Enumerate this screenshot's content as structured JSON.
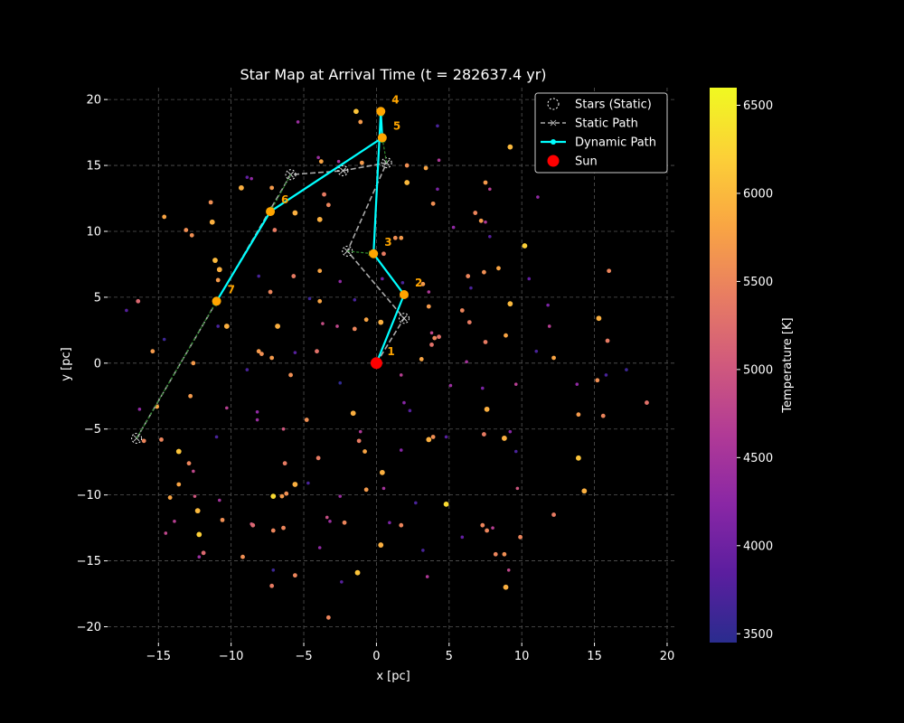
{
  "chart_data": {
    "type": "scatter",
    "title": "Star Map at Arrival Time (t = 282637.4 yr)",
    "xlabel": "x [pc]",
    "ylabel": "y [pc]",
    "xlim": [
      -18.5,
      20.5
    ],
    "ylim": [
      -21.2,
      20.9
    ],
    "xticks": [
      -15,
      -10,
      -5,
      0,
      5,
      10,
      15,
      20
    ],
    "xtick_labels": [
      "−15",
      "−10",
      "−5",
      "0",
      "5",
      "10",
      "15",
      "20"
    ],
    "yticks": [
      -20,
      -15,
      -10,
      -5,
      0,
      5,
      10,
      15,
      20
    ],
    "ytick_labels": [
      "−20",
      "−15",
      "−10",
      "−5",
      "0",
      "5",
      "10",
      "15",
      "20"
    ],
    "grid": true,
    "legend_position": "top-right",
    "legend": [
      {
        "label": "Stars (Static)",
        "kind": "dashed-circle",
        "color": "#ffffff"
      },
      {
        "label": "Static Path",
        "kind": "dashed-line-x",
        "color": "#aaaaaa"
      },
      {
        "label": "Dynamic Path",
        "kind": "solid-line-dot",
        "color": "#00ffff"
      },
      {
        "label": "Sun",
        "kind": "dot",
        "color": "#ff0000"
      }
    ],
    "colorbar": {
      "label": "Temperature [K]",
      "min": 3450,
      "max": 6600,
      "ticks": [
        3500,
        4000,
        4500,
        5000,
        5500,
        6000,
        6500
      ],
      "colors": [
        "#2a2c8e",
        "#5b1e9f",
        "#8a27a5",
        "#b13a96",
        "#d0597d",
        "#e87d62",
        "#f9a543",
        "#fcd037",
        "#f0f921"
      ]
    },
    "sun": {
      "x": 0.0,
      "y": 0.0,
      "color": "#ff0000"
    },
    "static_path": {
      "color": "#aaaaaa",
      "points": [
        {
          "x": 0.0,
          "y": 0.0
        },
        {
          "x": 1.9,
          "y": 3.4
        },
        {
          "x": -2.0,
          "y": 8.5
        },
        {
          "x": 0.7,
          "y": 15.2
        },
        {
          "x": -2.3,
          "y": 14.6
        },
        {
          "x": -5.9,
          "y": 14.3
        },
        {
          "x": -16.5,
          "y": -5.7
        }
      ]
    },
    "dynamic_path": {
      "color": "#00ffff",
      "marker_color": "#ffa500",
      "points": [
        {
          "x": 0.0,
          "y": 0.0,
          "label": "1"
        },
        {
          "x": 1.9,
          "y": 5.2,
          "label": "2"
        },
        {
          "x": -0.2,
          "y": 8.3,
          "label": "3"
        },
        {
          "x": 0.3,
          "y": 19.1,
          "label": "4"
        },
        {
          "x": 0.4,
          "y": 17.1,
          "label": "5"
        },
        {
          "x": -7.3,
          "y": 11.5,
          "label": "6"
        },
        {
          "x": -11.0,
          "y": 4.7,
          "label": "7"
        }
      ]
    },
    "drift_arrows": [
      {
        "x1": -2.0,
        "y1": 8.5,
        "x2": -0.2,
        "y2": 8.3
      },
      {
        "x1": 0.4,
        "y1": 17.1,
        "x2": 0.3,
        "y2": 19.1
      },
      {
        "x1": 0.7,
        "y1": 15.2,
        "x2": 0.4,
        "y2": 17.1
      },
      {
        "x1": -5.9,
        "y1": 14.3,
        "x2": -7.3,
        "y2": 11.5
      },
      {
        "x1": -16.5,
        "y1": -5.7,
        "x2": -11.0,
        "y2": 4.7
      }
    ],
    "stars": [
      {
        "x": -5.4,
        "y": 18.3,
        "t": 4400
      },
      {
        "x": -1.4,
        "y": 19.1,
        "t": 6100
      },
      {
        "x": -1.1,
        "y": 18.3,
        "t": 5700
      },
      {
        "x": 4.2,
        "y": 18.0,
        "t": 3700
      },
      {
        "x": -8.9,
        "y": 14.1,
        "t": 3900
      },
      {
        "x": -8.6,
        "y": 14.0,
        "t": 4300
      },
      {
        "x": -9.3,
        "y": 13.3,
        "t": 5900
      },
      {
        "x": -7.2,
        "y": 13.3,
        "t": 5700
      },
      {
        "x": -3.8,
        "y": 15.3,
        "t": 5800
      },
      {
        "x": -4.0,
        "y": 15.6,
        "t": 4400
      },
      {
        "x": -2.6,
        "y": 15.3,
        "t": 4500
      },
      {
        "x": -1.0,
        "y": 15.2,
        "t": 5700
      },
      {
        "x": 2.1,
        "y": 15.0,
        "t": 5600
      },
      {
        "x": 3.4,
        "y": 14.8,
        "t": 5800
      },
      {
        "x": 4.3,
        "y": 15.4,
        "t": 4600
      },
      {
        "x": 2.1,
        "y": 13.7,
        "t": 6000
      },
      {
        "x": 4.2,
        "y": 13.2,
        "t": 4100
      },
      {
        "x": -3.6,
        "y": 12.8,
        "t": 5400
      },
      {
        "x": -3.3,
        "y": 12.0,
        "t": 5500
      },
      {
        "x": 3.9,
        "y": 12.1,
        "t": 5600
      },
      {
        "x": 7.5,
        "y": 13.7,
        "t": 5700
      },
      {
        "x": 7.8,
        "y": 13.2,
        "t": 4700
      },
      {
        "x": 9.2,
        "y": 16.4,
        "t": 6000
      },
      {
        "x": 11.1,
        "y": 12.6,
        "t": 4300
      },
      {
        "x": -14.6,
        "y": 11.1,
        "t": 5800
      },
      {
        "x": -13.1,
        "y": 10.1,
        "t": 5600
      },
      {
        "x": -12.7,
        "y": 9.7,
        "t": 5600
      },
      {
        "x": -11.4,
        "y": 12.2,
        "t": 5600
      },
      {
        "x": -11.3,
        "y": 10.7,
        "t": 5900
      },
      {
        "x": -5.6,
        "y": 11.4,
        "t": 5900
      },
      {
        "x": -3.9,
        "y": 10.9,
        "t": 5900
      },
      {
        "x": -7.0,
        "y": 10.1,
        "t": 5400
      },
      {
        "x": 1.3,
        "y": 9.5,
        "t": 5600
      },
      {
        "x": 1.7,
        "y": 9.5,
        "t": 5700
      },
      {
        "x": 0.5,
        "y": 8.3,
        "t": 5400
      },
      {
        "x": 5.3,
        "y": 10.3,
        "t": 4300
      },
      {
        "x": 6.8,
        "y": 11.4,
        "t": 5500
      },
      {
        "x": 7.2,
        "y": 10.8,
        "t": 5700
      },
      {
        "x": 7.5,
        "y": 10.7,
        "t": 4600
      },
      {
        "x": 7.8,
        "y": 9.6,
        "t": 3800
      },
      {
        "x": 10.2,
        "y": 8.9,
        "t": 6200
      },
      {
        "x": -11.1,
        "y": 7.8,
        "t": 6000
      },
      {
        "x": -10.8,
        "y": 7.1,
        "t": 5900
      },
      {
        "x": -10.9,
        "y": 6.3,
        "t": 5700
      },
      {
        "x": -8.1,
        "y": 6.6,
        "t": 3700
      },
      {
        "x": -5.7,
        "y": 6.6,
        "t": 5400
      },
      {
        "x": -3.9,
        "y": 7.0,
        "t": 5800
      },
      {
        "x": -2.5,
        "y": 6.2,
        "t": 4300
      },
      {
        "x": 3.2,
        "y": 6.0,
        "t": 5700
      },
      {
        "x": 3.6,
        "y": 5.4,
        "t": 4600
      },
      {
        "x": 6.3,
        "y": 6.6,
        "t": 5500
      },
      {
        "x": 6.5,
        "y": 5.7,
        "t": 3700
      },
      {
        "x": 7.4,
        "y": 6.9,
        "t": 5600
      },
      {
        "x": 8.4,
        "y": 7.2,
        "t": 5800
      },
      {
        "x": 10.5,
        "y": 6.4,
        "t": 3900
      },
      {
        "x": 16.0,
        "y": 7.0,
        "t": 5500
      },
      {
        "x": -16.4,
        "y": 4.7,
        "t": 5200
      },
      {
        "x": -17.2,
        "y": 4.0,
        "t": 3800
      },
      {
        "x": -7.3,
        "y": 5.4,
        "t": 5500
      },
      {
        "x": -3.9,
        "y": 4.7,
        "t": 5800
      },
      {
        "x": -4.6,
        "y": 4.9,
        "t": 3600
      },
      {
        "x": -1.5,
        "y": 4.8,
        "t": 3700
      },
      {
        "x": 0.4,
        "y": 6.4,
        "t": 4000
      },
      {
        "x": 1.8,
        "y": 6.1,
        "t": 3700
      },
      {
        "x": 3.6,
        "y": 4.3,
        "t": 5700
      },
      {
        "x": 5.9,
        "y": 4.0,
        "t": 5500
      },
      {
        "x": 6.4,
        "y": 3.1,
        "t": 5400
      },
      {
        "x": 9.2,
        "y": 4.5,
        "t": 6000
      },
      {
        "x": 11.8,
        "y": 4.4,
        "t": 4100
      },
      {
        "x": -10.9,
        "y": 2.8,
        "t": 3700
      },
      {
        "x": -10.3,
        "y": 2.8,
        "t": 5900
      },
      {
        "x": -6.8,
        "y": 2.8,
        "t": 5900
      },
      {
        "x": -3.7,
        "y": 3.0,
        "t": 4900
      },
      {
        "x": -2.7,
        "y": 2.8,
        "t": 4800
      },
      {
        "x": -1.5,
        "y": 2.6,
        "t": 5500
      },
      {
        "x": -0.7,
        "y": 3.3,
        "t": 5800
      },
      {
        "x": 0.3,
        "y": 3.1,
        "t": 5900
      },
      {
        "x": 3.8,
        "y": 2.3,
        "t": 4800
      },
      {
        "x": 4.0,
        "y": 1.9,
        "t": 5500
      },
      {
        "x": 4.3,
        "y": 2.0,
        "t": 5300
      },
      {
        "x": 7.5,
        "y": 1.6,
        "t": 5400
      },
      {
        "x": 8.9,
        "y": 2.1,
        "t": 5800
      },
      {
        "x": 11.9,
        "y": 2.8,
        "t": 4700
      },
      {
        "x": 15.3,
        "y": 3.4,
        "t": 5900
      },
      {
        "x": 15.9,
        "y": 1.7,
        "t": 5400
      },
      {
        "x": -15.4,
        "y": 0.9,
        "t": 5700
      },
      {
        "x": -14.6,
        "y": 1.8,
        "t": 3600
      },
      {
        "x": -8.1,
        "y": 0.9,
        "t": 5700
      },
      {
        "x": -7.9,
        "y": 0.7,
        "t": 5600
      },
      {
        "x": -7.2,
        "y": 0.4,
        "t": 5700
      },
      {
        "x": -5.6,
        "y": 0.8,
        "t": 3800
      },
      {
        "x": -4.1,
        "y": 0.9,
        "t": 5300
      },
      {
        "x": 3.1,
        "y": 0.3,
        "t": 5800
      },
      {
        "x": 3.8,
        "y": 1.4,
        "t": 5300
      },
      {
        "x": 6.2,
        "y": 0.1,
        "t": 4500
      },
      {
        "x": 11.0,
        "y": 0.9,
        "t": 3700
      },
      {
        "x": 12.2,
        "y": 0.4,
        "t": 5800
      },
      {
        "x": 17.2,
        "y": -0.5,
        "t": 3600
      },
      {
        "x": -12.6,
        "y": 0.0,
        "t": 5700
      },
      {
        "x": -8.9,
        "y": -0.5,
        "t": 3700
      },
      {
        "x": -5.9,
        "y": -0.9,
        "t": 5600
      },
      {
        "x": -2.5,
        "y": -1.5,
        "t": 3500
      },
      {
        "x": 1.7,
        "y": -0.9,
        "t": 4700
      },
      {
        "x": 5.1,
        "y": -1.7,
        "t": 4400
      },
      {
        "x": 7.3,
        "y": -1.9,
        "t": 4100
      },
      {
        "x": 9.6,
        "y": -1.6,
        "t": 4700
      },
      {
        "x": 13.8,
        "y": -1.6,
        "t": 4300
      },
      {
        "x": 15.2,
        "y": -1.3,
        "t": 5600
      },
      {
        "x": 15.8,
        "y": -0.9,
        "t": 3700
      },
      {
        "x": -10.3,
        "y": -3.4,
        "t": 4700
      },
      {
        "x": -12.8,
        "y": -2.5,
        "t": 5700
      },
      {
        "x": -16.3,
        "y": -3.5,
        "t": 4300
      },
      {
        "x": -8.2,
        "y": -3.7,
        "t": 4300
      },
      {
        "x": -8.2,
        "y": -4.3,
        "t": 4400
      },
      {
        "x": -4.8,
        "y": -4.3,
        "t": 5600
      },
      {
        "x": -1.6,
        "y": -3.8,
        "t": 5900
      },
      {
        "x": 1.9,
        "y": -3.0,
        "t": 4200
      },
      {
        "x": 2.3,
        "y": -3.6,
        "t": 3800
      },
      {
        "x": 7.6,
        "y": -3.5,
        "t": 5900
      },
      {
        "x": 13.9,
        "y": -3.9,
        "t": 5700
      },
      {
        "x": 15.6,
        "y": -4.0,
        "t": 5500
      },
      {
        "x": 18.6,
        "y": -3.0,
        "t": 5300
      },
      {
        "x": -15.1,
        "y": -3.3,
        "t": 5800
      },
      {
        "x": -11.0,
        "y": -5.6,
        "t": 3700
      },
      {
        "x": -16.0,
        "y": -5.9,
        "t": 5500
      },
      {
        "x": -14.8,
        "y": -5.8,
        "t": 5500
      },
      {
        "x": -6.4,
        "y": -5.0,
        "t": 5000
      },
      {
        "x": -1.1,
        "y": -5.2,
        "t": 4600
      },
      {
        "x": -1.2,
        "y": -5.9,
        "t": 5400
      },
      {
        "x": 3.6,
        "y": -5.8,
        "t": 5900
      },
      {
        "x": 3.9,
        "y": -5.6,
        "t": 5600
      },
      {
        "x": 4.8,
        "y": -5.6,
        "t": 3800
      },
      {
        "x": 7.4,
        "y": -5.4,
        "t": 5400
      },
      {
        "x": 8.8,
        "y": -5.7,
        "t": 5900
      },
      {
        "x": 9.2,
        "y": -5.2,
        "t": 4200
      },
      {
        "x": 9.6,
        "y": -6.7,
        "t": 3700
      },
      {
        "x": -13.6,
        "y": -6.7,
        "t": 6100
      },
      {
        "x": -12.9,
        "y": -7.6,
        "t": 5500
      },
      {
        "x": -12.6,
        "y": -8.2,
        "t": 4800
      },
      {
        "x": -6.3,
        "y": -7.6,
        "t": 5400
      },
      {
        "x": -4.0,
        "y": -7.2,
        "t": 5400
      },
      {
        "x": -0.8,
        "y": -6.7,
        "t": 5800
      },
      {
        "x": 1.7,
        "y": -6.6,
        "t": 4200
      },
      {
        "x": 13.9,
        "y": -7.2,
        "t": 6100
      },
      {
        "x": -13.6,
        "y": -9.2,
        "t": 5800
      },
      {
        "x": -12.5,
        "y": -10.1,
        "t": 5000
      },
      {
        "x": -14.2,
        "y": -10.2,
        "t": 5800
      },
      {
        "x": -10.8,
        "y": -10.4,
        "t": 4500
      },
      {
        "x": -7.1,
        "y": -10.1,
        "t": 6300
      },
      {
        "x": -6.5,
        "y": -10.1,
        "t": 5700
      },
      {
        "x": -6.2,
        "y": -9.9,
        "t": 5600
      },
      {
        "x": -5.6,
        "y": -9.2,
        "t": 5900
      },
      {
        "x": -4.7,
        "y": -9.1,
        "t": 3700
      },
      {
        "x": -2.5,
        "y": -10.1,
        "t": 4400
      },
      {
        "x": -0.7,
        "y": -9.6,
        "t": 5700
      },
      {
        "x": 0.4,
        "y": -8.3,
        "t": 5900
      },
      {
        "x": 0.5,
        "y": -9.5,
        "t": 4500
      },
      {
        "x": 2.7,
        "y": -10.6,
        "t": 3700
      },
      {
        "x": 4.8,
        "y": -10.7,
        "t": 6300
      },
      {
        "x": 9.7,
        "y": -9.5,
        "t": 5000
      },
      {
        "x": 14.3,
        "y": -9.7,
        "t": 5900
      },
      {
        "x": -12.3,
        "y": -11.2,
        "t": 6000
      },
      {
        "x": -13.9,
        "y": -12.0,
        "t": 4700
      },
      {
        "x": -14.5,
        "y": -12.9,
        "t": 4800
      },
      {
        "x": -10.6,
        "y": -11.9,
        "t": 5600
      },
      {
        "x": -8.6,
        "y": -12.2,
        "t": 5000
      },
      {
        "x": -8.5,
        "y": -12.3,
        "t": 5200
      },
      {
        "x": -6.4,
        "y": -12.5,
        "t": 5500
      },
      {
        "x": -7.1,
        "y": -12.7,
        "t": 5500
      },
      {
        "x": -3.4,
        "y": -11.7,
        "t": 4900
      },
      {
        "x": -3.2,
        "y": -12.0,
        "t": 4400
      },
      {
        "x": -2.2,
        "y": -12.1,
        "t": 5500
      },
      {
        "x": 0.9,
        "y": -12.1,
        "t": 4100
      },
      {
        "x": 1.7,
        "y": -12.3,
        "t": 5500
      },
      {
        "x": 7.3,
        "y": -12.3,
        "t": 5500
      },
      {
        "x": 7.6,
        "y": -12.7,
        "t": 5500
      },
      {
        "x": 8.0,
        "y": -12.5,
        "t": 4700
      },
      {
        "x": 12.2,
        "y": -11.5,
        "t": 5400
      },
      {
        "x": -12.2,
        "y": -13.0,
        "t": 6200
      },
      {
        "x": -12.2,
        "y": -14.7,
        "t": 4400
      },
      {
        "x": -11.9,
        "y": -14.4,
        "t": 5200
      },
      {
        "x": -9.2,
        "y": -14.7,
        "t": 5600
      },
      {
        "x": -5.6,
        "y": -16.1,
        "t": 5500
      },
      {
        "x": -3.9,
        "y": -14.0,
        "t": 4300
      },
      {
        "x": -2.4,
        "y": -16.6,
        "t": 3800
      },
      {
        "x": -1.3,
        "y": -15.9,
        "t": 6100
      },
      {
        "x": 0.3,
        "y": -13.8,
        "t": 5900
      },
      {
        "x": 3.2,
        "y": -14.2,
        "t": 3700
      },
      {
        "x": 3.5,
        "y": -16.2,
        "t": 4600
      },
      {
        "x": 5.9,
        "y": -13.2,
        "t": 3900
      },
      {
        "x": 8.2,
        "y": -14.5,
        "t": 5500
      },
      {
        "x": 8.8,
        "y": -14.5,
        "t": 5600
      },
      {
        "x": 9.9,
        "y": -13.2,
        "t": 5500
      },
      {
        "x": 9.1,
        "y": -15.7,
        "t": 4800
      },
      {
        "x": 8.9,
        "y": -17.0,
        "t": 5900
      },
      {
        "x": -7.1,
        "y": -15.7,
        "t": 3600
      },
      {
        "x": -7.2,
        "y": -16.9,
        "t": 5400
      },
      {
        "x": -3.3,
        "y": -19.3,
        "t": 5500
      }
    ]
  }
}
